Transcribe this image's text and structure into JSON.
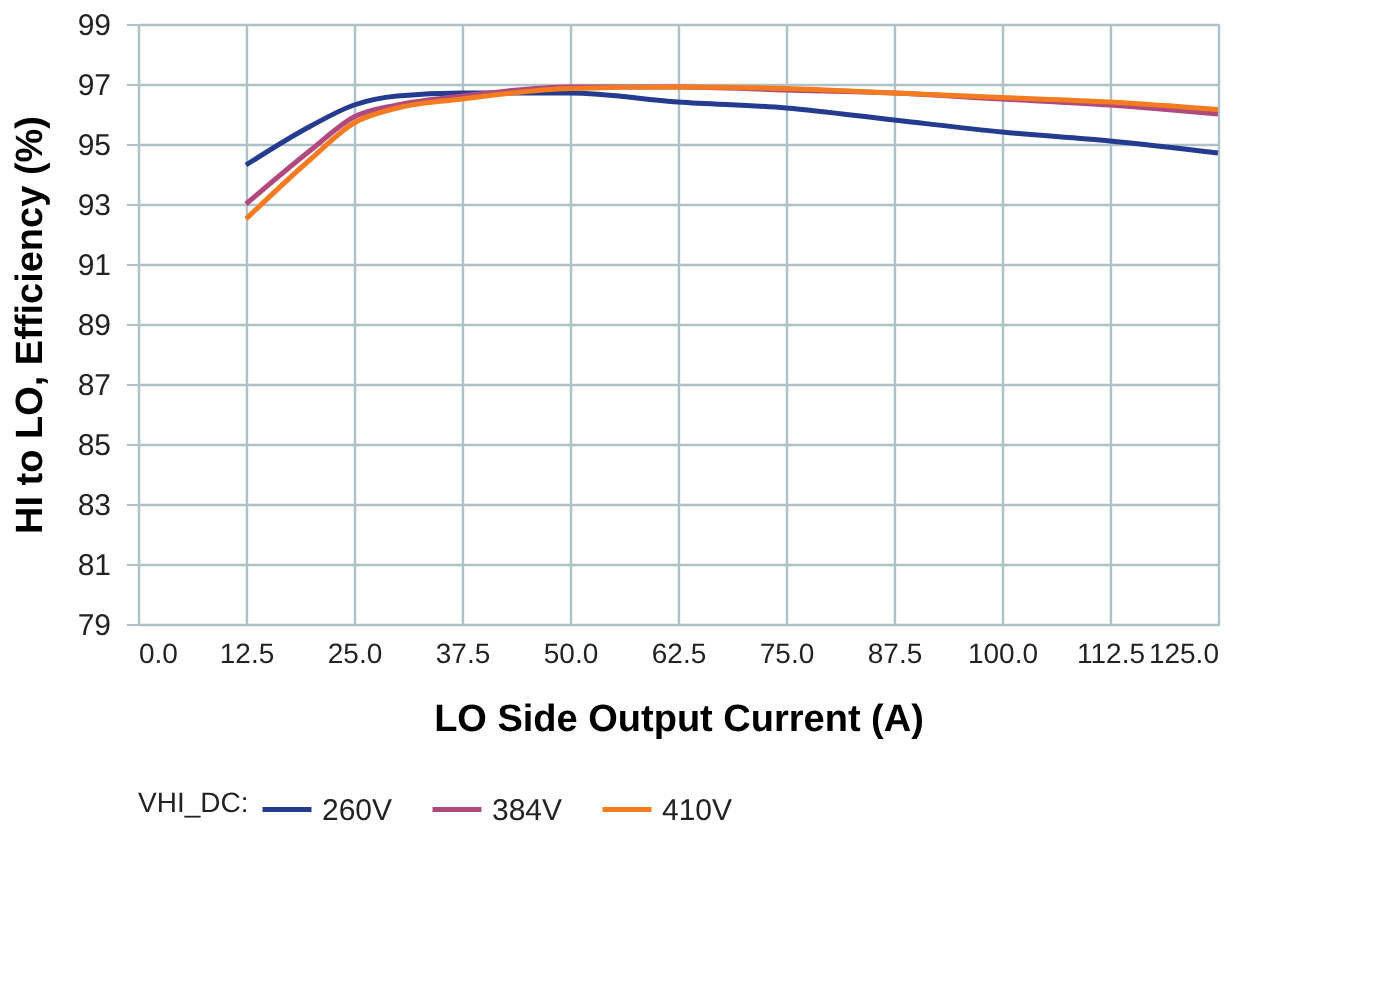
{
  "chart_data": {
    "type": "line",
    "xlabel": "LO Side Output Current (A)",
    "ylabel": "HI to LO, Efficiency (%)",
    "legend_title": "VHI_DC:",
    "x": [
      12.5,
      20,
      25,
      30,
      37.5,
      50,
      62.5,
      75,
      87.5,
      100,
      112.5,
      125
    ],
    "series": [
      {
        "name": "260V",
        "color": "#253b8f",
        "values": [
          94.3,
          95.6,
          96.3,
          96.6,
          96.7,
          96.7,
          96.4,
          96.2,
          95.8,
          95.4,
          95.1,
          94.7
        ]
      },
      {
        "name": "384V",
        "color": "#b04a7e",
        "values": [
          93.0,
          94.8,
          95.9,
          96.3,
          96.6,
          96.9,
          96.9,
          96.8,
          96.7,
          96.5,
          96.3,
          96.0
        ]
      },
      {
        "name": "410V",
        "color": "#f47b20",
        "values": [
          92.5,
          94.5,
          95.7,
          96.2,
          96.5,
          96.85,
          96.9,
          96.85,
          96.7,
          96.55,
          96.4,
          96.15
        ]
      }
    ],
    "xlim": [
      0,
      125
    ],
    "ylim": [
      79,
      99
    ],
    "xticks": [
      {
        "value": 0,
        "label": "0.0"
      },
      {
        "value": 12.5,
        "label": "12.5"
      },
      {
        "value": 25,
        "label": "25.0"
      },
      {
        "value": 37.5,
        "label": "37.5"
      },
      {
        "value": 50,
        "label": "50.0"
      },
      {
        "value": 62.5,
        "label": "62.5"
      },
      {
        "value": 75,
        "label": "75.0"
      },
      {
        "value": 87.5,
        "label": "87.5"
      },
      {
        "value": 100,
        "label": "100.0"
      },
      {
        "value": 112.5,
        "label": "112.5"
      },
      {
        "value": 125,
        "label": "125.0"
      }
    ],
    "yticks": [
      79,
      81,
      83,
      85,
      87,
      89,
      91,
      93,
      95,
      97,
      99
    ],
    "grid": true,
    "legend": "bottom",
    "marker": "none",
    "line_style": "solid"
  }
}
